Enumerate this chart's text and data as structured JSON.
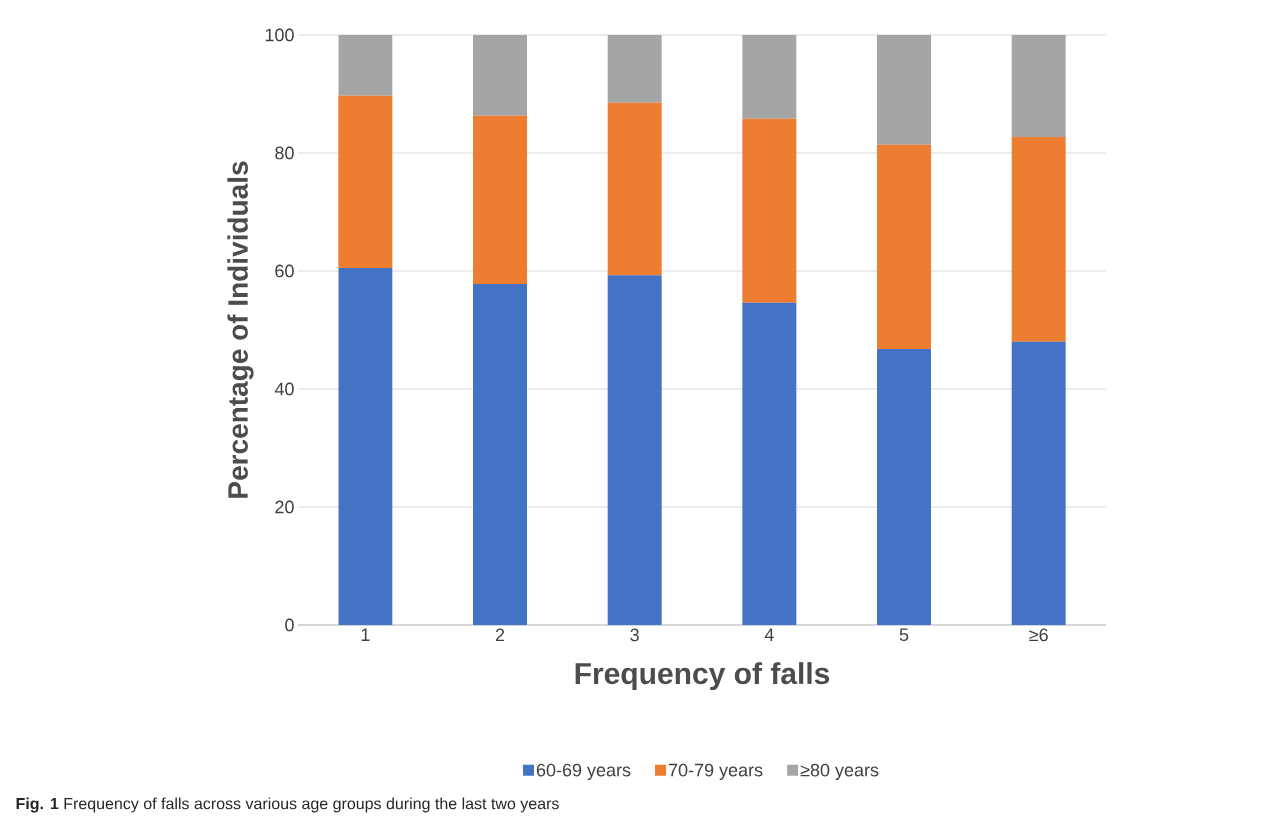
{
  "chart_data": {
    "type": "bar",
    "stacked": true,
    "xlabel": "Frequency of falls",
    "ylabel": "Percentage of Individuals",
    "categories": [
      "1",
      "2",
      "3",
      "4",
      "5",
      "≥6"
    ],
    "series": [
      {
        "name": "60-69 years",
        "color": "#4472c4",
        "values": [
          60.5,
          57.8,
          59.3,
          54.6,
          46.8,
          48.0
        ]
      },
      {
        "name": "70-79 years",
        "color": "#ed7d31",
        "values": [
          29.2,
          28.5,
          29.2,
          31.2,
          34.6,
          34.7
        ]
      },
      {
        "name": "≥80 years",
        "color": "#a5a5a5",
        "values": [
          10.3,
          13.7,
          11.5,
          14.2,
          18.6,
          17.3
        ]
      }
    ],
    "ylim": [
      0,
      100
    ],
    "yticks": [
      0,
      20,
      40,
      60,
      80,
      100
    ],
    "grid": "y",
    "legend": "bottom",
    "annotations": [
      "**Fig. 1** Frequency of falls across various age groups during the last two years"
    ]
  }
}
